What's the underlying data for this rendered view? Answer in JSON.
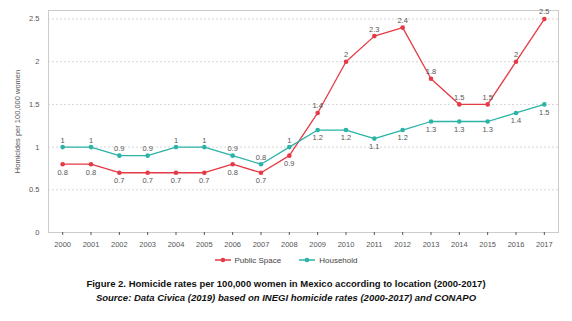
{
  "chart_data": {
    "type": "line",
    "title": "Figure 2. Homicide rates per 100,000 women in Mexico according to location (2000-2017)",
    "subtitle": "Source: Data Civica (2019) based on INEGI homicide rates (2000-2017) and CONAPO",
    "y_label": "Homicides per 100,000 women",
    "x": [
      2000,
      2001,
      2002,
      2003,
      2004,
      2005,
      2006,
      2007,
      2008,
      2009,
      2010,
      2011,
      2012,
      2013,
      2014,
      2015,
      2016,
      2017
    ],
    "series": [
      {
        "name": "Public Space",
        "color": "#e63946",
        "marker": "circle",
        "values": [
          0.8,
          0.8,
          0.7,
          0.7,
          0.7,
          0.7,
          0.8,
          0.7,
          0.9,
          1.4,
          2,
          2.3,
          2.4,
          1.8,
          1.5,
          1.5,
          2,
          2.5
        ]
      },
      {
        "name": "Household",
        "color": "#2ab3a6",
        "marker": "circle",
        "values": [
          1,
          1,
          0.9,
          0.9,
          1,
          1,
          0.9,
          0.8,
          1,
          1.2,
          1.2,
          1.1,
          1.2,
          1.3,
          1.3,
          1.3,
          1.4,
          1.5
        ]
      }
    ],
    "xlim": [
      1999.5,
      2017.5
    ],
    "xticks": [
      2000,
      2001,
      2002,
      2003,
      2004,
      2005,
      2006,
      2007,
      2008,
      2009,
      2010,
      2011,
      2012,
      2013,
      2014,
      2015,
      2016,
      2017
    ],
    "ylim": [
      0,
      2.6
    ],
    "yticks": [
      0,
      0.5,
      1,
      1.5,
      2,
      2.5
    ],
    "grid": true,
    "data_labels": true,
    "legend": "bottom"
  }
}
